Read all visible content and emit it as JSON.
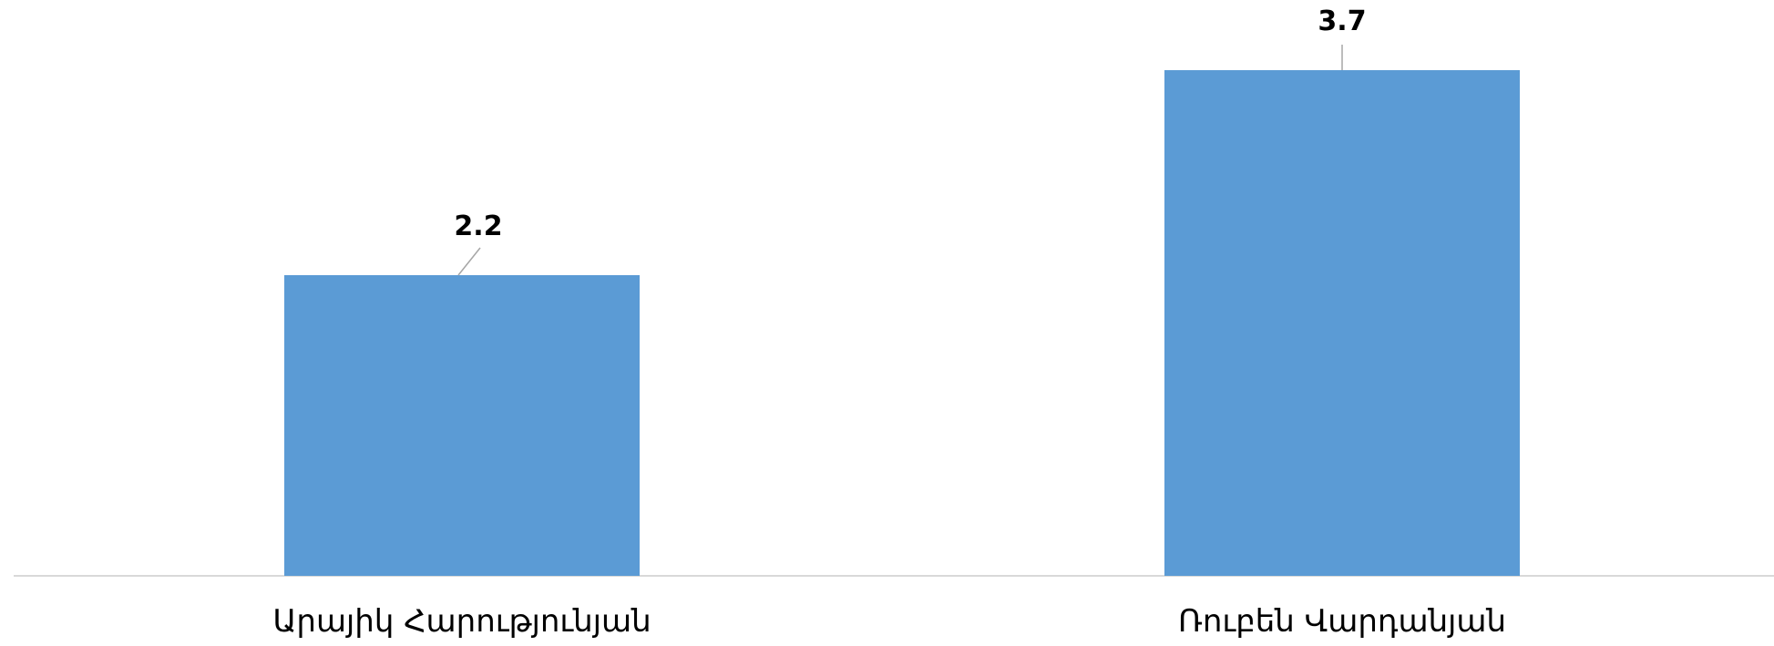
{
  "chart_data": {
    "type": "bar",
    "categories": [
      "Արայիկ Հարությունյան",
      "Ռուբեն Վարդանյան"
    ],
    "values": [
      2.2,
      3.7
    ],
    "data_labels": [
      "2.2",
      "3.7"
    ],
    "title": "",
    "xlabel": "",
    "ylabel": "",
    "ylim": [
      0,
      3.7
    ],
    "grid": false,
    "legend": "none",
    "bar_color": "#5B9BD5",
    "axis_color": "#D9D9D9",
    "leader_line_color": "#A6A6A6"
  }
}
